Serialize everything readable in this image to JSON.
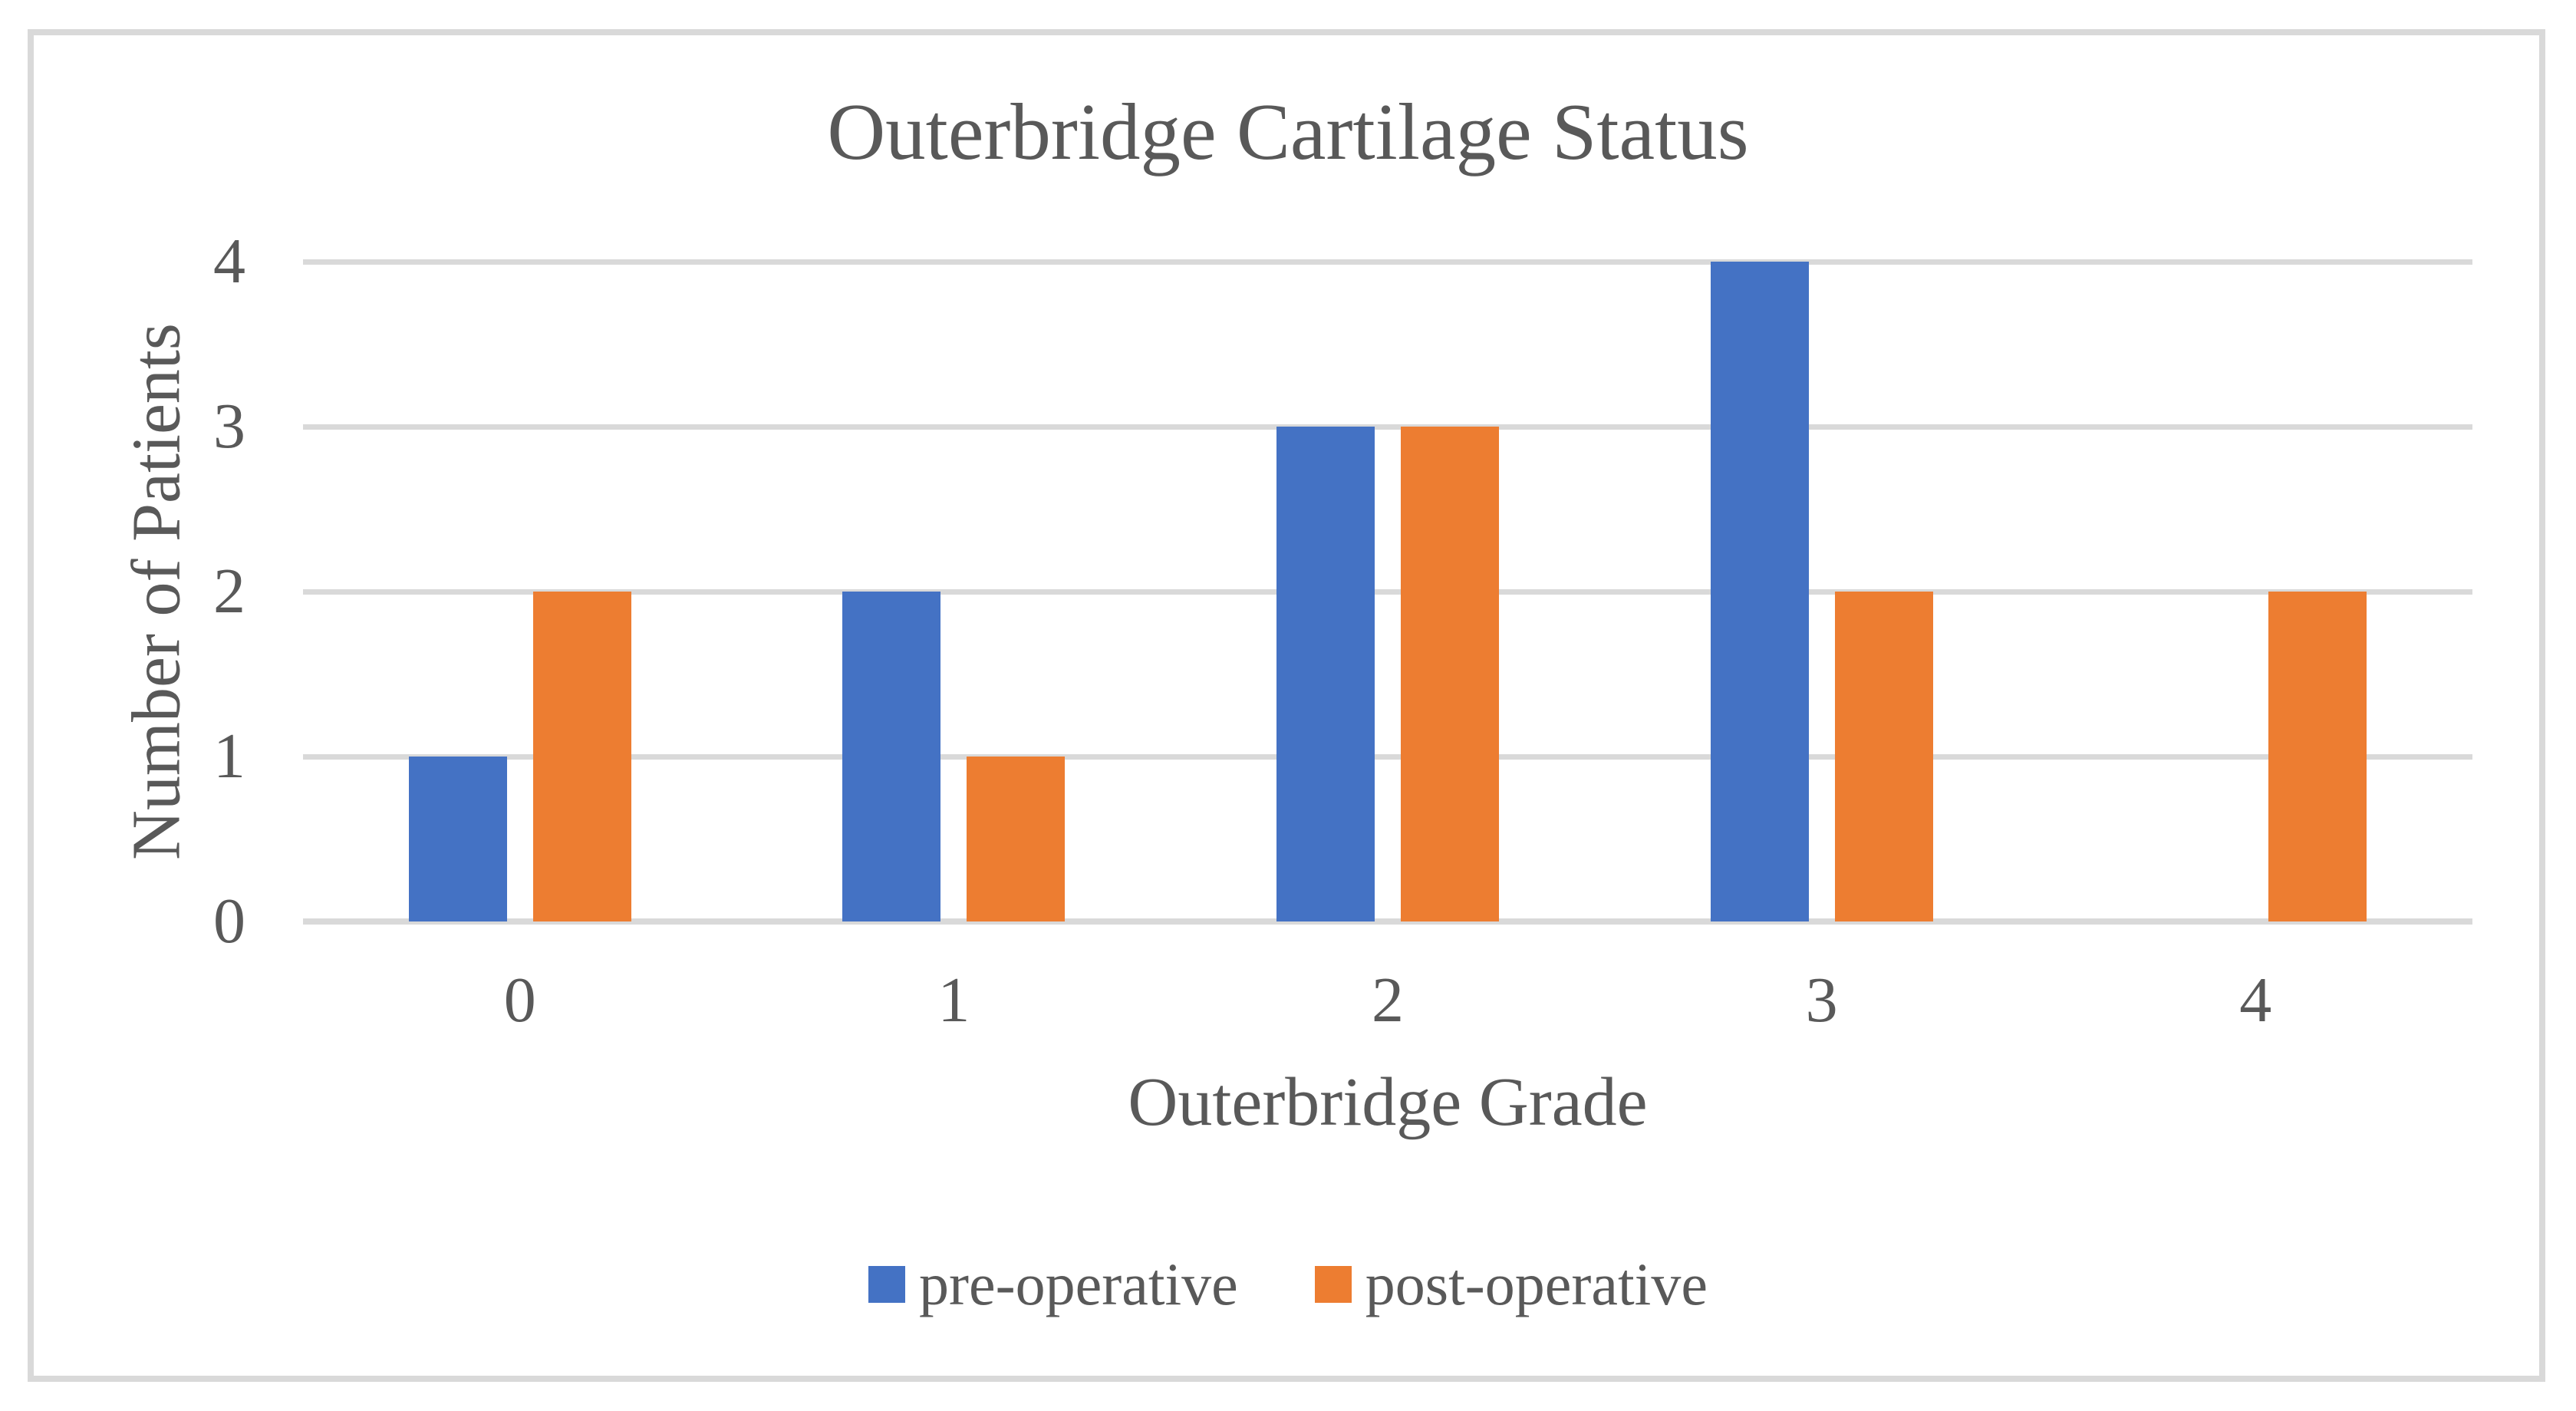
{
  "chart_data": {
    "type": "bar",
    "title": "Outerbridge Cartilage Status",
    "xlabel": "Outerbridge Grade",
    "ylabel": "Number of Patients",
    "categories": [
      "0",
      "1",
      "2",
      "3",
      "4"
    ],
    "series": [
      {
        "name": "pre-operative",
        "color": "#4472C4",
        "values": [
          1,
          2,
          3,
          4,
          0
        ]
      },
      {
        "name": "post-operative",
        "color": "#ED7D31",
        "values": [
          2,
          1,
          3,
          2,
          2
        ]
      }
    ],
    "ylim": [
      0,
      4
    ],
    "yticks": [
      0,
      1,
      2,
      3,
      4
    ],
    "grid": true,
    "legend_position": "bottom"
  },
  "colors": {
    "text": "#595959",
    "gridline": "#D9D9D9",
    "frame_border": "#D9D9D9",
    "background": "#FFFFFF",
    "series_pre": "#4472C4",
    "series_post": "#ED7D31"
  }
}
